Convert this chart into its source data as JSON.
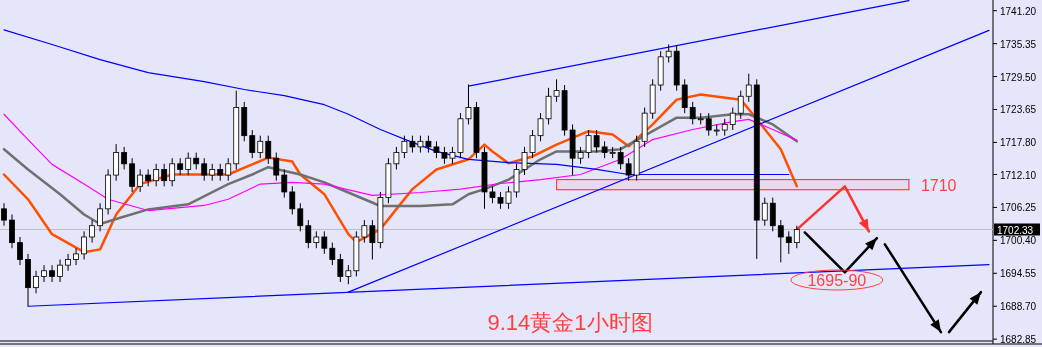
{
  "chart_data": {
    "type": "candlestick",
    "title": "9.14黄金1小时图",
    "categories": [
      null,
      null,
      null,
      null,
      null,
      null,
      null,
      null,
      null,
      null,
      null,
      null,
      null,
      null,
      null,
      null,
      null,
      null,
      null,
      null,
      null,
      null,
      null,
      null,
      null,
      null,
      null,
      null,
      null,
      null,
      null,
      null,
      null,
      null,
      null,
      null,
      null,
      null,
      null,
      null,
      null,
      null,
      null,
      null,
      null,
      null,
      null,
      null,
      null,
      null,
      null,
      null,
      null,
      null,
      null,
      null,
      null,
      null,
      null,
      null,
      null,
      null,
      null,
      null,
      null,
      null,
      null,
      null,
      null,
      null,
      null,
      null,
      null,
      null,
      null,
      null,
      null,
      null,
      null,
      null,
      null,
      null,
      null,
      null,
      null,
      null,
      null,
      null,
      null,
      null,
      null,
      null,
      null,
      null,
      null,
      null,
      null,
      null,
      null,
      null,
      null,
      null,
      null,
      null,
      null,
      null,
      null,
      null,
      null,
      null,
      null,
      null,
      null,
      null,
      null,
      null,
      null,
      null,
      null,
      null,
      null,
      null,
      null,
      null
    ],
    "ohlc": [
      [
        1706,
        1707,
        1703,
        1704
      ],
      [
        1704,
        1705,
        1699,
        1700
      ],
      [
        1700,
        1701,
        1696,
        1697
      ],
      [
        1697,
        1698,
        1688.7,
        1692
      ],
      [
        1692,
        1695,
        1691,
        1694
      ],
      [
        1694,
        1696,
        1693,
        1695
      ],
      [
        1695,
        1696,
        1693,
        1694
      ],
      [
        1694,
        1697,
        1693,
        1696
      ],
      [
        1696,
        1698,
        1695,
        1697
      ],
      [
        1697,
        1699,
        1696,
        1698
      ],
      [
        1698,
        1702,
        1697,
        1701
      ],
      [
        1701,
        1704,
        1700,
        1703
      ],
      [
        1703,
        1707,
        1702,
        1706
      ],
      [
        1706,
        1713,
        1705,
        1712
      ],
      [
        1712,
        1717.5,
        1711,
        1716
      ],
      [
        1716,
        1717,
        1713,
        1714
      ],
      [
        1714,
        1715,
        1709,
        1710
      ],
      [
        1710,
        1713,
        1709,
        1712
      ],
      [
        1712,
        1713,
        1710,
        1711
      ],
      [
        1711,
        1714,
        1710,
        1713
      ],
      [
        1713,
        1714,
        1710,
        1711
      ],
      [
        1711,
        1715,
        1710,
        1714
      ],
      [
        1714,
        1715,
        1712,
        1713
      ],
      [
        1713,
        1716,
        1712,
        1715
      ],
      [
        1715,
        1716,
        1713,
        1714
      ],
      [
        1714,
        1715,
        1711,
        1712
      ],
      [
        1712,
        1714,
        1711,
        1713
      ],
      [
        1713,
        1714,
        1711,
        1712
      ],
      [
        1712,
        1715,
        1711,
        1714
      ],
      [
        1714,
        1727,
        1713,
        1724
      ],
      [
        1724,
        1725,
        1718,
        1719
      ],
      [
        1719,
        1720,
        1715,
        1716
      ],
      [
        1716,
        1719,
        1715,
        1718
      ],
      [
        1718,
        1719,
        1714,
        1715
      ],
      [
        1715,
        1716,
        1711,
        1712
      ],
      [
        1712,
        1713,
        1708,
        1709
      ],
      [
        1709,
        1710,
        1705,
        1706
      ],
      [
        1706,
        1707,
        1702,
        1703
      ],
      [
        1703,
        1704,
        1699,
        1700
      ],
      [
        1700,
        1702,
        1699,
        1701
      ],
      [
        1701,
        1702,
        1698,
        1699
      ],
      [
        1699,
        1700,
        1696,
        1697
      ],
      [
        1697,
        1698,
        1693,
        1694
      ],
      [
        1694,
        1696,
        1692.6,
        1695
      ],
      [
        1695,
        1702,
        1694,
        1701
      ],
      [
        1701,
        1704,
        1700,
        1703
      ],
      [
        1703,
        1704,
        1697,
        1700
      ],
      [
        1700,
        1709,
        1699,
        1708
      ],
      [
        1708,
        1715,
        1707,
        1714
      ],
      [
        1714,
        1717,
        1713,
        1716
      ],
      [
        1716,
        1719,
        1715,
        1718
      ],
      [
        1718,
        1719,
        1716,
        1717
      ],
      [
        1717,
        1719,
        1716,
        1718
      ],
      [
        1718,
        1719,
        1716,
        1717
      ],
      [
        1717,
        1718,
        1715,
        1716
      ],
      [
        1716,
        1717,
        1714,
        1715
      ],
      [
        1715,
        1717,
        1714,
        1716
      ],
      [
        1716,
        1723,
        1715,
        1722
      ],
      [
        1722,
        1728.1,
        1721,
        1724
      ],
      [
        1724,
        1725,
        1715,
        1716
      ],
      [
        1716,
        1717,
        1706,
        1709
      ],
      [
        1709,
        1710,
        1707,
        1708
      ],
      [
        1708,
        1709,
        1706,
        1707
      ],
      [
        1707,
        1710,
        1706,
        1709
      ],
      [
        1709,
        1714,
        1708,
        1713
      ],
      [
        1713,
        1717,
        1712,
        1716
      ],
      [
        1716,
        1720,
        1715,
        1719
      ],
      [
        1719,
        1723,
        1718,
        1722
      ],
      [
        1722,
        1727.5,
        1721,
        1726
      ],
      [
        1726,
        1729,
        1725,
        1727
      ],
      [
        1727,
        1728,
        1719,
        1720
      ],
      [
        1720,
        1721,
        1712,
        1715
      ],
      [
        1715,
        1717,
        1714,
        1716
      ],
      [
        1716,
        1720,
        1715,
        1719
      ],
      [
        1719,
        1720,
        1716,
        1717
      ],
      [
        1717,
        1718,
        1715,
        1716
      ],
      [
        1716,
        1717,
        1715,
        1716
      ],
      [
        1716,
        1717,
        1713,
        1714
      ],
      [
        1714,
        1715,
        1711,
        1712
      ],
      [
        1712,
        1719,
        1711,
        1718
      ],
      [
        1718,
        1724,
        1717,
        1723
      ],
      [
        1723,
        1729,
        1722,
        1728
      ],
      [
        1728,
        1734,
        1727,
        1733
      ],
      [
        1733,
        1735.2,
        1732,
        1734
      ],
      [
        1734,
        1735,
        1727,
        1728
      ],
      [
        1728,
        1729,
        1723,
        1724
      ],
      [
        1724,
        1725,
        1721,
        1722
      ],
      [
        1722,
        1723,
        1721,
        1722
      ],
      [
        1722,
        1723,
        1719,
        1720
      ],
      [
        1720,
        1721,
        1719,
        1720
      ],
      [
        1720,
        1722,
        1719,
        1721
      ],
      [
        1721,
        1724,
        1720,
        1723
      ],
      [
        1723,
        1727,
        1722,
        1726
      ],
      [
        1726,
        1730,
        1725,
        1728
      ],
      [
        1728,
        1729,
        1697.1,
        1704
      ],
      [
        1704,
        1708,
        1703,
        1707
      ],
      [
        1707,
        1708,
        1702,
        1703
      ],
      [
        1703,
        1704,
        1696.5,
        1701
      ],
      [
        1701,
        1702,
        1698,
        1700
      ],
      [
        1700,
        1703,
        1699,
        1702.33
      ],
      null,
      null,
      null,
      null,
      null,
      null,
      null,
      null,
      null,
      null,
      null,
      null,
      null,
      null,
      null,
      null,
      null,
      null,
      null,
      null,
      null,
      null,
      null,
      null
    ],
    "series": [
      {
        "type": "line",
        "color": "#ff5000",
        "values": [
          1712.1,
          null,
          null,
          1707.7,
          null,
          null,
          1701.5,
          null,
          null,
          null,
          1698.3,
          null,
          1698.8,
          null,
          1705.0,
          null,
          null,
          1710.4,
          null,
          null,
          null,
          1712.1,
          null,
          null,
          null,
          1712.1,
          null,
          null,
          1712.1,
          null,
          null,
          1713.9,
          null,
          1715.1,
          null,
          null,
          1714.4,
          1712.1,
          null,
          null,
          1708.6,
          null,
          null,
          1701.5,
          1700.1,
          null,
          null,
          1702.4,
          null,
          null,
          null,
          1709.5,
          null,
          null,
          1713.0,
          null,
          null,
          null,
          1714.8,
          null,
          1717.4,
          1716.2,
          null,
          1714.1,
          null,
          null,
          1715.3,
          null,
          null,
          1717.4,
          null,
          null,
          null,
          1719.8,
          null,
          null,
          1719.2,
          null,
          1717.1,
          null,
          null,
          1721.0,
          null,
          null,
          1725.4,
          null,
          null,
          1726.3,
          null,
          null,
          null,
          null,
          1725.4,
          1723.7,
          null,
          null,
          null,
          1716.6,
          null,
          1710.0,
          null,
          null,
          null,
          null,
          null,
          null,
          null,
          null,
          null,
          null,
          null,
          null,
          null,
          null,
          null,
          null,
          null,
          null,
          null,
          null,
          null,
          null,
          null,
          null
        ]
      },
      {
        "type": "line",
        "color": "#707070",
        "values": [
          1716.6,
          null,
          null,
          1713.0,
          null,
          null,
          null,
          1708.6,
          null,
          null,
          1705.0,
          null,
          1703.3,
          null,
          1704.2,
          null,
          null,
          null,
          1705.9,
          null,
          null,
          null,
          null,
          1706.8,
          null,
          null,
          null,
          null,
          1710.4,
          null,
          null,
          1712.1,
          null,
          1713.4,
          null,
          null,
          null,
          1712.1,
          null,
          null,
          1710.7,
          null,
          null,
          1708.9,
          null,
          null,
          null,
          1706.5,
          null,
          null,
          null,
          null,
          1706.5,
          null,
          null,
          null,
          1706.8,
          null,
          1708.6,
          null,
          1709.5,
          null,
          null,
          1711.2,
          null,
          null,
          null,
          1714.8,
          null,
          1716.2,
          null,
          null,
          null,
          null,
          1716.2,
          null,
          null,
          1716.6,
          null,
          null,
          null,
          1719.8,
          null,
          null,
          1722.2,
          null,
          null,
          1722.2,
          null,
          null,
          null,
          1722.8,
          null,
          1722.8,
          null,
          null,
          1721.0,
          null,
          null,
          1718.0,
          null,
          null,
          null,
          null,
          null,
          null,
          null,
          null,
          null,
          null,
          null,
          null,
          null,
          null,
          null,
          null,
          null,
          null,
          null,
          null,
          null,
          null,
          null,
          null
        ]
      },
      {
        "type": "line",
        "color": "#ff00ff",
        "values": [
          1722.8,
          null,
          null,
          1718.3,
          null,
          null,
          1713.9,
          null,
          null,
          null,
          1710.4,
          null,
          null,
          1707.7,
          null,
          null,
          null,
          null,
          1705.7,
          null,
          null,
          null,
          null,
          null,
          null,
          1706.6,
          null,
          null,
          1707.7,
          null,
          null,
          null,
          1710.4,
          null,
          null,
          null,
          1710.7,
          null,
          null,
          null,
          1710.4,
          null,
          null,
          null,
          null,
          null,
          1708.4,
          null,
          null,
          null,
          null,
          null,
          1708.9,
          null,
          null,
          null,
          null,
          1709.5,
          null,
          null,
          null,
          null,
          1710.5,
          null,
          null,
          null,
          null,
          1711.2,
          null,
          null,
          null,
          null,
          1712.1,
          null,
          null,
          null,
          null,
          1714.8,
          null,
          null,
          null,
          1718.3,
          null,
          null,
          null,
          null,
          1720.1,
          null,
          null,
          null,
          null,
          1721.5,
          null,
          1721.9,
          null,
          null,
          1720.1,
          null,
          null,
          1718.2,
          null,
          null,
          null,
          null,
          null,
          null,
          null,
          null,
          null,
          null,
          null,
          null,
          null,
          null,
          null,
          null,
          null,
          null,
          null,
          null,
          null,
          null,
          null,
          null
        ]
      },
      {
        "type": "line",
        "color": "#0000ff",
        "values": [
          1737.8,
          null,
          null,
          null,
          null,
          null,
          1735.2,
          null,
          null,
          null,
          null,
          null,
          1732.5,
          null,
          null,
          null,
          null,
          null,
          1730.2,
          null,
          null,
          null,
          null,
          null,
          null,
          1728.6,
          null,
          null,
          null,
          null,
          1727.2,
          null,
          null,
          null,
          null,
          1726.1,
          null,
          null,
          null,
          null,
          1724.5,
          null,
          null,
          1722.8,
          null,
          null,
          null,
          1720.1,
          null,
          null,
          null,
          1717.8,
          null,
          null,
          1716.2,
          null,
          null,
          null,
          1714.8,
          null,
          null,
          null,
          null,
          1714.2,
          null,
          null,
          null,
          null,
          null,
          1713.9,
          null,
          null,
          null,
          null,
          1713.0,
          null,
          null,
          null,
          1712.1,
          null,
          null,
          null,
          null,
          null,
          null,
          null,
          null,
          1712.1,
          null,
          null,
          null,
          null,
          null,
          null,
          null,
          null,
          null,
          null,
          1712.1,
          null,
          null,
          null,
          null,
          null,
          null,
          null,
          null,
          null,
          null,
          null,
          null,
          null,
          null,
          null,
          null,
          null,
          null,
          null,
          null,
          null,
          null,
          null,
          null,
          null
        ]
      },
      {
        "type": "line",
        "color": "#0000ff",
        "values": [
          null,
          null,
          null,
          1688.7,
          null,
          null,
          null,
          null,
          null,
          null,
          null,
          null,
          null,
          null,
          null,
          null,
          null,
          null,
          null,
          null,
          null,
          null,
          null,
          null,
          null,
          null,
          null,
          null,
          null,
          null,
          null,
          null,
          null,
          null,
          null,
          null,
          null,
          null,
          null,
          null,
          null,
          null,
          null,
          null,
          null,
          null,
          null,
          null,
          null,
          null,
          null,
          null,
          null,
          null,
          null,
          null,
          null,
          null,
          null,
          null,
          null,
          null,
          null,
          null,
          null,
          null,
          null,
          null,
          null,
          null,
          null,
          null,
          null,
          null,
          null,
          null,
          null,
          null,
          null,
          null,
          null,
          null,
          null,
          null,
          null,
          null,
          null,
          null,
          null,
          null,
          null,
          null,
          null,
          null,
          null,
          null,
          null,
          null,
          null,
          null,
          null,
          null,
          null,
          null,
          null,
          null,
          null,
          null,
          null,
          null,
          null,
          null,
          null,
          null,
          null,
          null,
          null,
          null,
          null,
          null,
          null,
          null,
          null,
          1696.1
        ]
      },
      {
        "type": "line",
        "color": "#0000ff",
        "values": [
          null,
          null,
          null,
          null,
          null,
          null,
          null,
          null,
          null,
          null,
          null,
          null,
          null,
          null,
          null,
          null,
          null,
          null,
          null,
          null,
          null,
          null,
          null,
          null,
          null,
          null,
          null,
          null,
          null,
          null,
          null,
          null,
          null,
          null,
          null,
          null,
          null,
          null,
          null,
          null,
          null,
          null,
          null,
          1691.2,
          null,
          null,
          null,
          null,
          null,
          null,
          null,
          null,
          null,
          null,
          null,
          null,
          null,
          null,
          null,
          null,
          null,
          null,
          null,
          null,
          null,
          null,
          null,
          null,
          null,
          null,
          null,
          null,
          null,
          null,
          null,
          null,
          null,
          null,
          null,
          null,
          null,
          null,
          null,
          null,
          null,
          null,
          null,
          null,
          null,
          null,
          null,
          null,
          null,
          null,
          null,
          null,
          null,
          null,
          null,
          null,
          null,
          null,
          null,
          null,
          null,
          null,
          null,
          null,
          null,
          null,
          null,
          null,
          null,
          null,
          null,
          null,
          null,
          null,
          null,
          null,
          null,
          null,
          null,
          1737.7
        ]
      },
      {
        "type": "line",
        "color": "#0000ff",
        "values": [
          null,
          null,
          null,
          null,
          null,
          null,
          null,
          null,
          null,
          null,
          null,
          null,
          null,
          null,
          null,
          null,
          null,
          null,
          null,
          null,
          null,
          null,
          null,
          null,
          null,
          null,
          null,
          null,
          null,
          null,
          null,
          null,
          null,
          null,
          null,
          null,
          null,
          null,
          null,
          null,
          null,
          null,
          null,
          null,
          null,
          null,
          null,
          null,
          null,
          null,
          null,
          null,
          null,
          null,
          null,
          null,
          null,
          null,
          1727.8,
          null,
          null,
          null,
          null,
          null,
          null,
          null,
          null,
          null,
          null,
          null,
          null,
          null,
          null,
          null,
          null,
          null,
          null,
          null,
          null,
          null,
          null,
          null,
          null,
          null,
          null,
          null,
          null,
          null,
          null,
          null,
          null,
          null,
          null,
          null,
          null,
          null,
          null,
          null,
          null,
          null,
          null,
          null,
          null,
          null,
          null,
          null,
          null,
          null,
          null,
          null,
          null,
          null,
          null,
          1743.0,
          null,
          null,
          null,
          null,
          null,
          null,
          null,
          null,
          null,
          null
        ]
      },
      {
        "type": "line",
        "color": "#ff3030",
        "values": [
          null,
          null,
          null,
          null,
          null,
          null,
          null,
          null,
          null,
          null,
          null,
          null,
          null,
          null,
          null,
          null,
          null,
          null,
          null,
          null,
          null,
          null,
          null,
          null,
          null,
          null,
          null,
          null,
          null,
          null,
          null,
          null,
          null,
          null,
          null,
          null,
          null,
          null,
          null,
          null,
          null,
          null,
          null,
          null,
          null,
          null,
          null,
          null,
          null,
          null,
          null,
          null,
          null,
          null,
          null,
          null,
          null,
          null,
          null,
          null,
          null,
          null,
          null,
          null,
          null,
          null,
          null,
          null,
          null,
          null,
          null,
          null,
          null,
          null,
          null,
          null,
          null,
          null,
          null,
          null,
          null,
          null,
          null,
          null,
          null,
          null,
          null,
          null,
          null,
          null,
          null,
          null,
          null,
          null,
          null,
          null,
          null,
          null,
          null,
          1702.3,
          null,
          null,
          null,
          null,
          null,
          1710,
          null,
          null,
          1702,
          null,
          null,
          null,
          null,
          null,
          null,
          null,
          null,
          null,
          null,
          null,
          null,
          null,
          null,
          null
        ]
      },
      {
        "type": "line",
        "color": "#000000",
        "values": [
          null,
          null,
          null,
          null,
          null,
          null,
          null,
          null,
          null,
          null,
          null,
          null,
          null,
          null,
          null,
          null,
          null,
          null,
          null,
          null,
          null,
          null,
          null,
          null,
          null,
          null,
          null,
          null,
          null,
          null,
          null,
          null,
          null,
          null,
          null,
          null,
          null,
          null,
          null,
          null,
          null,
          null,
          null,
          null,
          null,
          null,
          null,
          null,
          null,
          null,
          null,
          null,
          null,
          null,
          null,
          null,
          null,
          null,
          null,
          null,
          null,
          null,
          null,
          null,
          null,
          null,
          null,
          null,
          null,
          null,
          null,
          null,
          null,
          null,
          null,
          null,
          null,
          null,
          null,
          null,
          null,
          null,
          null,
          null,
          null,
          null,
          null,
          null,
          null,
          null,
          null,
          null,
          null,
          null,
          null,
          null,
          null,
          null,
          null,
          null,
          1701.8,
          null,
          null,
          null,
          null,
          1694.7,
          null,
          null,
          null,
          1700.8,
          null,
          null,
          null,
          null,
          null,
          null,
          null,
          null,
          null,
          null,
          null,
          null,
          null,
          null
        ]
      },
      {
        "type": "line",
        "color": "#000000",
        "values": [
          null,
          null,
          null,
          null,
          null,
          null,
          null,
          null,
          null,
          null,
          null,
          null,
          null,
          null,
          null,
          null,
          null,
          null,
          null,
          null,
          null,
          null,
          null,
          null,
          null,
          null,
          null,
          null,
          null,
          null,
          null,
          null,
          null,
          null,
          null,
          null,
          null,
          null,
          null,
          null,
          null,
          null,
          null,
          null,
          null,
          null,
          null,
          null,
          null,
          null,
          null,
          null,
          null,
          null,
          null,
          null,
          null,
          null,
          null,
          null,
          null,
          null,
          null,
          null,
          null,
          null,
          null,
          null,
          null,
          null,
          null,
          null,
          null,
          null,
          null,
          null,
          null,
          null,
          null,
          null,
          null,
          null,
          null,
          null,
          null,
          null,
          null,
          null,
          null,
          null,
          null,
          null,
          null,
          null,
          null,
          null,
          null,
          null,
          null,
          null,
          null,
          null,
          null,
          null,
          null,
          null,
          null,
          null,
          null,
          null,
          1699.7,
          null,
          null,
          null,
          null,
          null,
          null,
          1684.1,
          null,
          null,
          null,
          null,
          null,
          null
        ]
      },
      {
        "type": "line",
        "color": "#000000",
        "values": [
          null,
          null,
          null,
          null,
          null,
          null,
          null,
          null,
          null,
          null,
          null,
          null,
          null,
          null,
          null,
          null,
          null,
          null,
          null,
          null,
          null,
          null,
          null,
          null,
          null,
          null,
          null,
          null,
          null,
          null,
          null,
          null,
          null,
          null,
          null,
          null,
          null,
          null,
          null,
          null,
          null,
          null,
          null,
          null,
          null,
          null,
          null,
          null,
          null,
          null,
          null,
          null,
          null,
          null,
          null,
          null,
          null,
          null,
          null,
          null,
          null,
          null,
          null,
          null,
          null,
          null,
          null,
          null,
          null,
          null,
          null,
          null,
          null,
          null,
          null,
          null,
          null,
          null,
          null,
          null,
          null,
          null,
          null,
          null,
          null,
          null,
          null,
          null,
          null,
          null,
          null,
          null,
          null,
          null,
          null,
          null,
          null,
          null,
          null,
          null,
          null,
          null,
          null,
          null,
          null,
          null,
          null,
          null,
          null,
          null,
          null,
          null,
          null,
          null,
          null,
          null,
          null,
          null,
          1684.1,
          null,
          null,
          null,
          1691.2,
          null
        ]
      }
    ],
    "ylim": [
      1682.7,
      1743.1
    ],
    "yticks": [
      {
        "value": 1682.85,
        "label": "1682.85"
      },
      {
        "value": 1688.7,
        "label": "1688.70"
      },
      {
        "value": 1694.55,
        "label": "1694.55"
      },
      {
        "value": 1700.4,
        "label": "1700.40"
      },
      {
        "value": 1706.25,
        "label": "1706.25"
      },
      {
        "value": 1712.1,
        "label": "1712.10"
      },
      {
        "value": 1717.8,
        "label": "1717.80"
      },
      {
        "value": 1723.65,
        "label": "1723.65"
      },
      {
        "value": 1729.5,
        "label": "1729.50"
      },
      {
        "value": 1735.35,
        "label": "1735.35"
      },
      {
        "value": 1741.2,
        "label": "1741.20"
      }
    ],
    "ref_lines": [
      {
        "axis": "y",
        "value": 1702.33,
        "label": "1702.33",
        "color": "#c0c0c0"
      }
    ],
    "bands": [
      {
        "axis": "y",
        "from": 1709.4,
        "to": 1711.2,
        "label": "1710",
        "color": "#ff4040"
      }
    ],
    "annotations": [
      "1695-90"
    ]
  }
}
